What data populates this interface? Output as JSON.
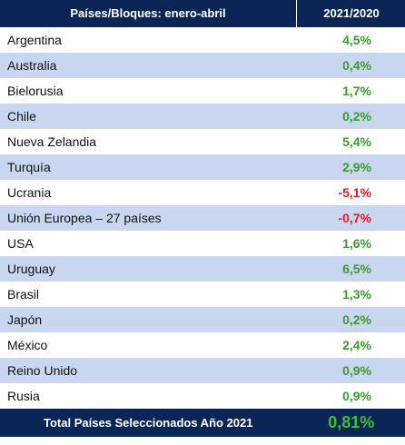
{
  "header": {
    "country_col": "Países/Bloques: enero-abril",
    "change_col": "2021/2020"
  },
  "rows": [
    {
      "country": "Argentina",
      "change": "4,5%",
      "sign": "pos"
    },
    {
      "country": "Australia",
      "change": "0,4%",
      "sign": "pos"
    },
    {
      "country": "Bielorusia",
      "change": "1,7%",
      "sign": "pos"
    },
    {
      "country": "Chile",
      "change": "0,2%",
      "sign": "pos"
    },
    {
      "country": "Nueva Zelandia",
      "change": "5,4%",
      "sign": "pos"
    },
    {
      "country": "Turquía",
      "change": "2,9%",
      "sign": "pos"
    },
    {
      "country": "Ucrania",
      "change": "-5,1%",
      "sign": "neg"
    },
    {
      "country": "Unión Europea – 27 países",
      "change": "-0,7%",
      "sign": "neg"
    },
    {
      "country": "USA",
      "change": "1,6%",
      "sign": "pos"
    },
    {
      "country": "Uruguay",
      "change": "6,5%",
      "sign": "pos"
    },
    {
      "country": "Brasil",
      "change": "1,3%",
      "sign": "pos"
    },
    {
      "country": "Japón",
      "change": "0,2%",
      "sign": "pos"
    },
    {
      "country": "México",
      "change": "2,4%",
      "sign": "pos"
    },
    {
      "country": "Reino Unido",
      "change": "0,9%",
      "sign": "pos"
    },
    {
      "country": "Rusia",
      "change": "0,9%",
      "sign": "pos"
    }
  ],
  "total": {
    "label": "Total Países Seleccionados Año 2021",
    "value": "0,81%"
  },
  "colors": {
    "header_bg": "#0c2557",
    "stripe": "#c9d6f0",
    "positive": "#3a9b2e",
    "negative": "#e31b23",
    "total_value": "#3fbf3a"
  }
}
